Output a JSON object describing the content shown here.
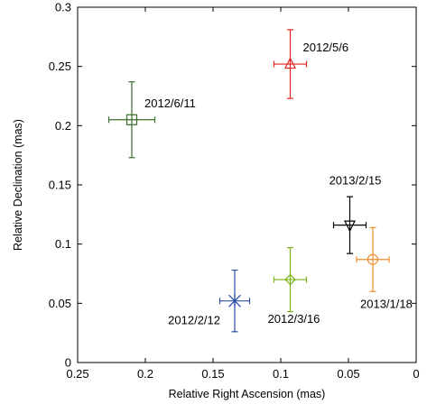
{
  "chart_data": {
    "type": "scatter",
    "xlabel": "Relative Right Ascension (mas)",
    "ylabel": "Relative Declination (mas)",
    "xlim": [
      0.25,
      0
    ],
    "ylim": [
      0,
      0.3
    ],
    "x_reversed": true,
    "grid": false,
    "legend": "none",
    "x_ticks": [
      "0.25",
      "0.2",
      "0.15",
      "0.1",
      "0.05",
      "0"
    ],
    "y_ticks": [
      "0",
      "0.05",
      "0.1",
      "0.15",
      "0.2",
      "0.25",
      "0.3"
    ],
    "points": [
      {
        "label": "2012/2/12",
        "x": 0.134,
        "y": 0.052,
        "xerr": 0.011,
        "yerr": 0.026,
        "marker": "asterisk",
        "color": "#2b4fa8",
        "label_anchor": "left-below"
      },
      {
        "label": "2012/3/16",
        "x": 0.093,
        "y": 0.07,
        "xerr": 0.012,
        "yerr": 0.027,
        "marker": "diamond",
        "color": "#7cb21a",
        "label_anchor": "below"
      },
      {
        "label": "2012/5/6",
        "x": 0.093,
        "y": 0.252,
        "xerr": 0.012,
        "yerr": 0.029,
        "marker": "triangle-up",
        "color": "#e8231f",
        "label_anchor": "right-above"
      },
      {
        "label": "2012/6/11",
        "x": 0.21,
        "y": 0.205,
        "xerr": 0.017,
        "yerr": 0.032,
        "marker": "square",
        "color": "#3a6b2c",
        "label_anchor": "right-above"
      },
      {
        "label": "2013/1/18",
        "x": 0.032,
        "y": 0.087,
        "xerr": 0.012,
        "yerr": 0.027,
        "marker": "circle",
        "color": "#f08a2c",
        "label_anchor": "below-left"
      },
      {
        "label": "2013/2/15",
        "x": 0.049,
        "y": 0.116,
        "xerr": 0.012,
        "yerr": 0.024,
        "marker": "triangle-down",
        "color": "#000000",
        "label_anchor": "above"
      }
    ]
  }
}
